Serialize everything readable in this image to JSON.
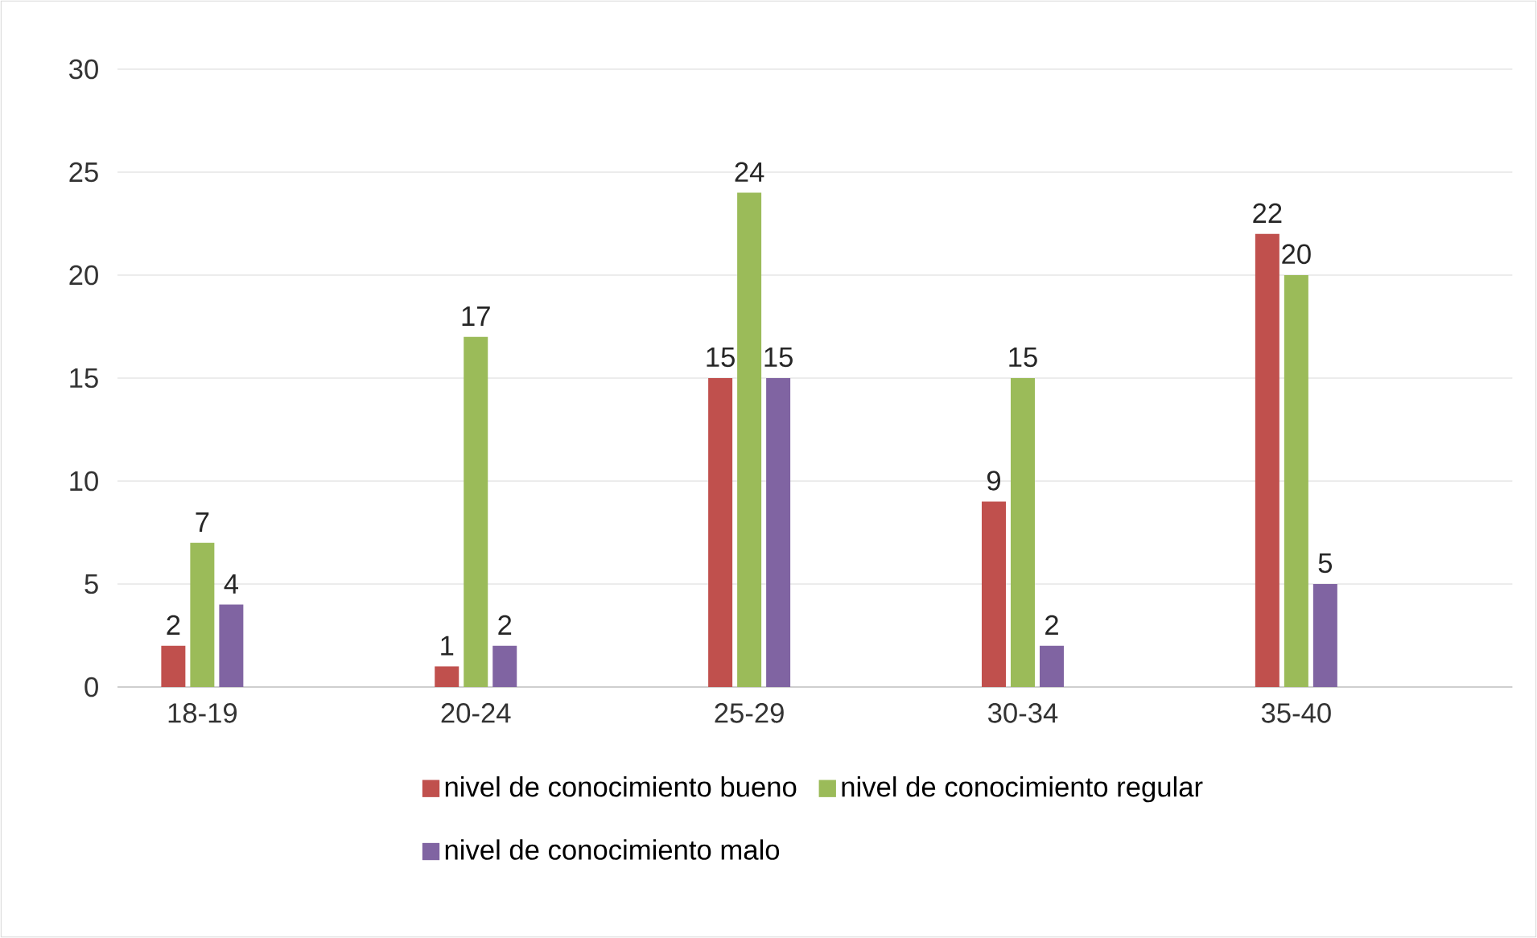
{
  "chart_data": {
    "type": "bar",
    "categories": [
      "18-19",
      "20-24",
      "25-29",
      "30-34",
      "35-40"
    ],
    "series": [
      {
        "name": "nivel de conocimiento bueno",
        "color": "#c0504d",
        "values": [
          2,
          1,
          15,
          9,
          22
        ]
      },
      {
        "name": "nivel de conocimiento regular",
        "color": "#9bbb59",
        "values": [
          7,
          17,
          24,
          15,
          20
        ]
      },
      {
        "name": "nivel de conocimiento malo",
        "color": "#8064a2",
        "values": [
          4,
          2,
          15,
          2,
          5
        ]
      }
    ],
    "ylim": [
      0,
      30
    ],
    "yticks": [
      0,
      5,
      10,
      15,
      20,
      25,
      30
    ],
    "grid": "y",
    "legend": "bottom",
    "data_labels": true
  }
}
